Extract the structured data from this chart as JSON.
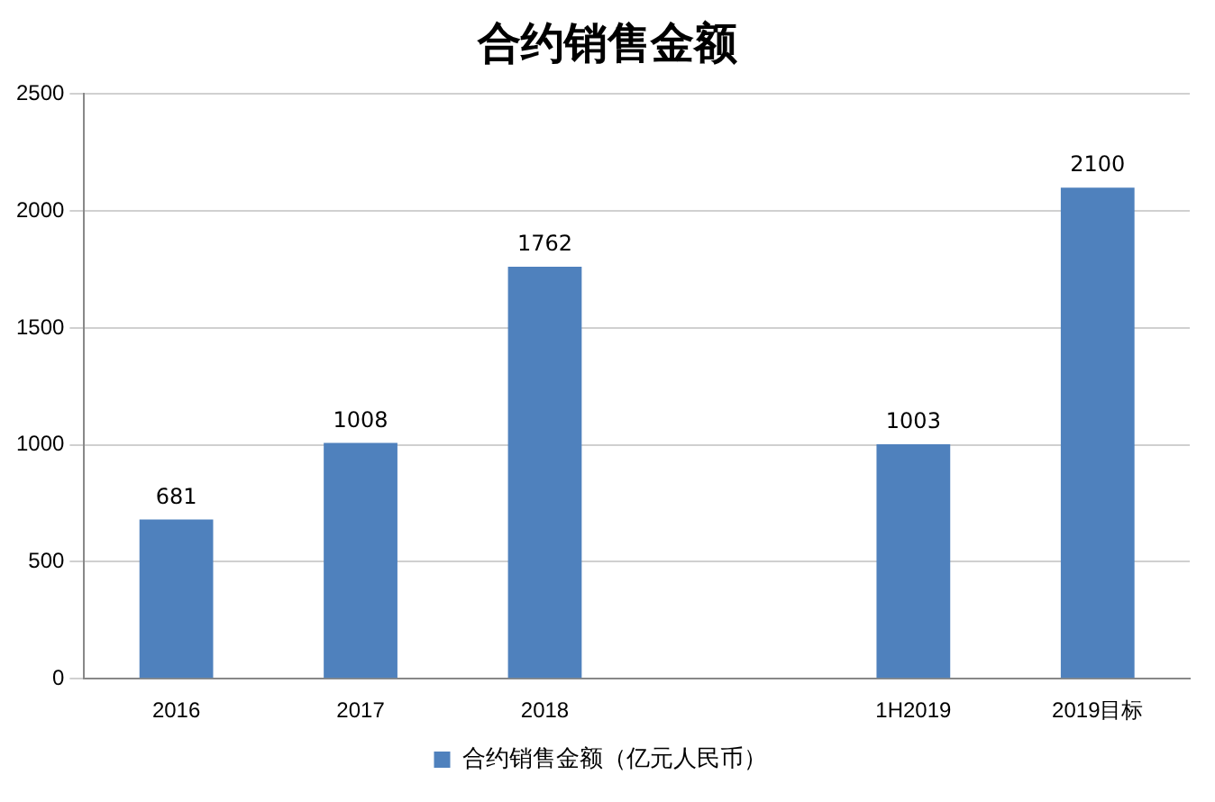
{
  "chart_data": {
    "type": "bar",
    "title": "合约销售金额",
    "categories": [
      "2016",
      "2017",
      "2018",
      null,
      "1H2019",
      "2019目标"
    ],
    "series": [
      {
        "name": "合约销售金额（亿元人民币）",
        "color": "#4f81bd",
        "values": [
          681,
          1008,
          1762,
          null,
          1003,
          2100
        ]
      }
    ],
    "ylim": [
      0,
      2500
    ],
    "yticks": [
      0,
      500,
      1000,
      1500,
      2000,
      2500
    ],
    "grid": "y",
    "legend": "bottom",
    "data_labels": true
  }
}
